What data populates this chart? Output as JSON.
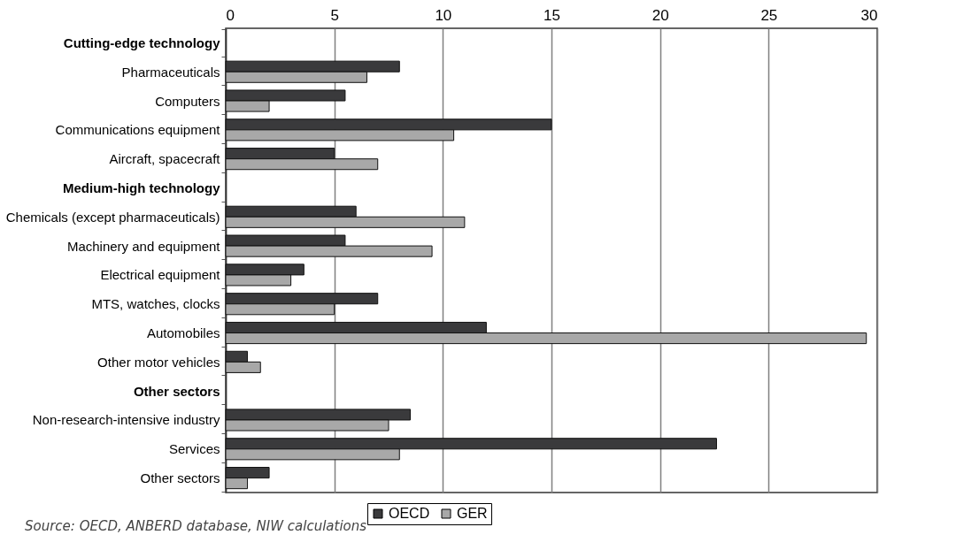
{
  "chart_data": {
    "type": "bar",
    "orientation": "horizontal",
    "categories": [
      "Cutting-edge technology",
      "Pharmaceuticals",
      "Computers",
      "Communications equipment",
      "Aircraft, spacecraft",
      "Medium-high technology",
      "Chemicals (except pharmaceuticals)",
      "Machinery and equipment",
      "Electrical equipment",
      "MTS, watches, clocks",
      "Automobiles",
      "Other motor vehicles",
      "Other sectors",
      "Non-research-intensive industry",
      "Services",
      "Other sectors"
    ],
    "series": [
      {
        "name": "OECD",
        "color": "#3a3a3c",
        "values": [
          null,
          8,
          5.5,
          15,
          5,
          null,
          6,
          5.5,
          3.6,
          7,
          12,
          1,
          null,
          8.5,
          22.6,
          2
        ]
      },
      {
        "name": "GER",
        "color": "#a8a8a8",
        "values": [
          null,
          6.5,
          2,
          10.5,
          7,
          null,
          11,
          9.5,
          3,
          5,
          29.5,
          1.6,
          null,
          7.5,
          8,
          1
        ]
      }
    ],
    "xlim": [
      0,
      30
    ],
    "xticks": [
      0,
      5,
      10,
      15,
      20,
      25,
      30
    ],
    "grid": "x",
    "legend": "bottom",
    "annotations": [
      "Source: OECD, ANBERD database, NIW calculations"
    ]
  }
}
